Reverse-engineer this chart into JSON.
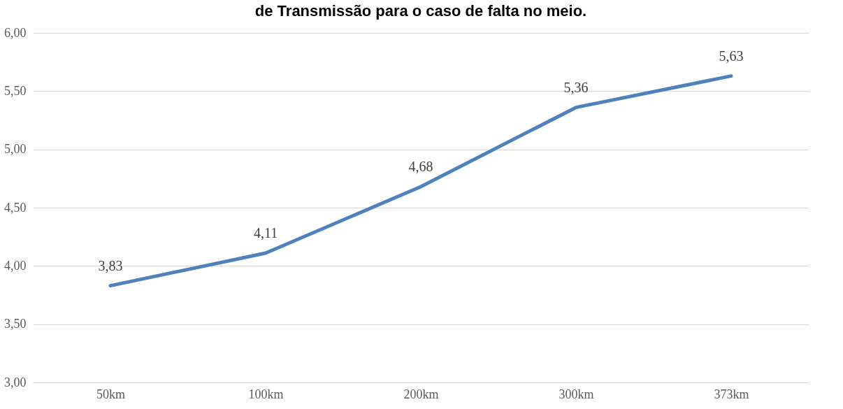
{
  "chart_data": {
    "type": "line",
    "title": "de Transmissão para o caso de falta no meio.",
    "categories": [
      "50km",
      "100km",
      "200km",
      "300km",
      "373km"
    ],
    "series": [
      {
        "color": "#4f81bd",
        "values": [
          3.83,
          4.11,
          4.68,
          5.36,
          5.63
        ],
        "value_labels": [
          "3,83",
          "4,11",
          "4,68",
          "5,36",
          "5,63"
        ]
      }
    ],
    "ylim": [
      3,
      6
    ],
    "yticks": [
      {
        "value": 3,
        "label": "3,00"
      },
      {
        "value": 3.5,
        "label": "3,50"
      },
      {
        "value": 4,
        "label": "4,00"
      },
      {
        "value": 4.5,
        "label": "4,50"
      },
      {
        "value": 5,
        "label": "5,00"
      },
      {
        "value": 5.5,
        "label": "5,50"
      },
      {
        "value": 6,
        "label": "6,00"
      }
    ],
    "grid": "y",
    "marker": "none",
    "line_style": "solid"
  }
}
